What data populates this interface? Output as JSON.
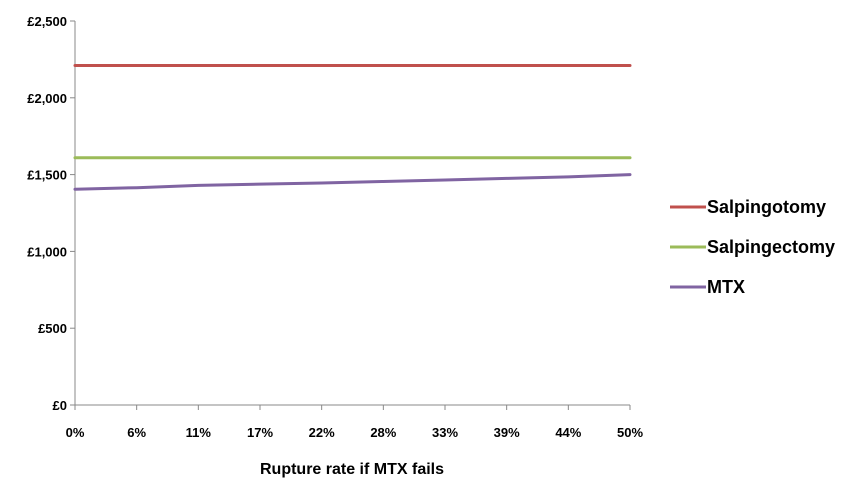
{
  "chart_data": {
    "type": "line",
    "x": [
      "0%",
      "6%",
      "11%",
      "17%",
      "22%",
      "28%",
      "33%",
      "39%",
      "44%",
      "50%"
    ],
    "xlabel": "Rupture rate if MTX fails",
    "ylabel": "",
    "ylim": [
      0,
      2500
    ],
    "yticks": [
      {
        "value": 0,
        "label": "£0"
      },
      {
        "value": 500,
        "label": "£500"
      },
      {
        "value": 1000,
        "label": "£1,000"
      },
      {
        "value": 1500,
        "label": "£1,500"
      },
      {
        "value": 2000,
        "label": "£2,000"
      },
      {
        "value": 2500,
        "label": "£2,500"
      }
    ],
    "grid": false,
    "legend_position": "right",
    "series": [
      {
        "name": "Salpingotomy",
        "color": "#c0504d",
        "values": [
          2210,
          2210,
          2210,
          2210,
          2210,
          2210,
          2210,
          2210,
          2210,
          2210
        ]
      },
      {
        "name": "Salpingectomy",
        "color": "#9bbb59",
        "values": [
          1610,
          1610,
          1610,
          1610,
          1610,
          1610,
          1610,
          1610,
          1610,
          1610
        ]
      },
      {
        "name": "MTX",
        "color": "#8064a2",
        "values": [
          1405,
          1415,
          1430,
          1438,
          1445,
          1455,
          1465,
          1475,
          1485,
          1500
        ]
      }
    ]
  }
}
